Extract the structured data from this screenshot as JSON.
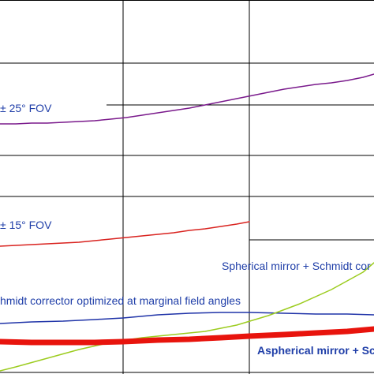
{
  "chart_data": {
    "type": "line",
    "title": "",
    "xlabel": "",
    "ylabel": "",
    "grid": true,
    "legend": "none (curves labelled inline)",
    "series": [
      {
        "label_color": "#1f3ea8",
        "color": "#7a1a8c",
        "x": [
          0,
          20,
          40,
          60,
          80,
          100,
          120,
          140,
          160,
          180,
          200,
          220,
          240,
          260,
          280,
          300,
          320,
          340,
          360,
          380,
          400,
          420,
          440,
          460,
          474
        ],
        "y": [
          157,
          157,
          156,
          156,
          155,
          154,
          153,
          151,
          149,
          146,
          143,
          140,
          137,
          133,
          129,
          125,
          121,
          117,
          113,
          110,
          107,
          105,
          102,
          98,
          94
        ]
      },
      {
        "color": "#d9231f",
        "x": [
          0,
          20,
          40,
          60,
          80,
          100,
          120,
          140,
          160,
          180,
          200,
          220,
          240,
          260,
          280,
          300,
          316
        ],
        "y": [
          312,
          311,
          310,
          309,
          308,
          307,
          305,
          303,
          301,
          299,
          297,
          295,
          292,
          290,
          287,
          284,
          281
        ]
      },
      {
        "color": "#1f33a8",
        "x": [
          0,
          40,
          80,
          120,
          156,
          200,
          240,
          280,
          316,
          360,
          400,
          440,
          474
        ],
        "y": [
          410,
          408,
          407,
          405,
          403,
          399,
          397,
          396,
          396,
          397,
          398,
          398,
          399
        ]
      },
      {
        "color": "#9ccc1f",
        "x": [
          0,
          20,
          60,
          100,
          140,
          180,
          220,
          260,
          300,
          340,
          380,
          420,
          460,
          474
        ],
        "y": [
          470,
          465,
          454,
          443,
          434,
          428,
          424,
          420,
          412,
          400,
          385,
          367,
          345,
          333
        ]
      },
      {
        "color": "#e8140d",
        "x": [
          0,
          40,
          80,
          120,
          156,
          200,
          240,
          280,
          316,
          360,
          400,
          440,
          474
        ],
        "y": [
          433,
          434,
          434,
          434,
          433,
          431,
          430,
          428,
          426,
          424,
          422,
          420,
          417
        ]
      }
    ],
    "annotations": [
      {
        "text": "± 25° FOV",
        "color": "#1f3ea8"
      },
      {
        "text": "± 15° FOV",
        "color": "#1f3ea8"
      },
      {
        "text": "Spherical mirror + Schmidt cor",
        "color": "#1f3ea8"
      },
      {
        "text": "hmidt corrector optimized at marginal field angles",
        "color": "#1f3ea8"
      },
      {
        "text": "Aspherical mirror + Sch",
        "color": "#1f3ea8"
      }
    ]
  }
}
